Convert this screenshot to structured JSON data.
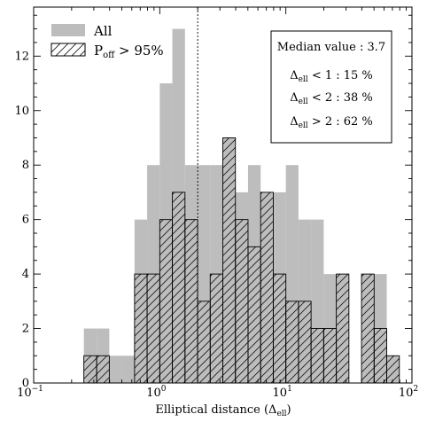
{
  "chart_data": {
    "type": "bar",
    "xscale": "log",
    "xlim": [
      0.1,
      100
    ],
    "ylim": [
      0,
      13.8
    ],
    "xlabel_main": "Elliptical distance (Δ",
    "xlabel_sub": "ell",
    "xlabel_end": ")",
    "xticks": [
      {
        "value": 0.1,
        "base": "10",
        "exp": "−1"
      },
      {
        "value": 1,
        "base": "10",
        "exp": "0"
      },
      {
        "value": 10,
        "base": "10",
        "exp": "1"
      },
      {
        "value": 100,
        "base": "10",
        "exp": "2"
      }
    ],
    "yticks": [
      0,
      2,
      4,
      6,
      8,
      10,
      12
    ],
    "median_line": 2.0,
    "bin_edges": [
      0.25,
      0.316,
      0.398,
      0.501,
      0.631,
      0.794,
      1.0,
      1.259,
      1.585,
      1.995,
      2.512,
      3.162,
      3.981,
      5.012,
      6.31,
      7.943,
      10.0,
      12.589,
      15.849,
      19.953,
      25.119,
      31.623,
      39.811,
      50.119,
      63.096,
      79.433
    ],
    "series": [
      {
        "name": "All",
        "color": "#bdbdbd",
        "values": [
          2,
          2,
          1,
          1,
          6,
          8,
          11,
          13,
          8,
          8,
          8,
          9,
          7,
          8,
          7,
          7,
          8,
          6,
          6,
          4,
          4,
          0,
          4,
          4,
          1
        ]
      },
      {
        "name": "P_off > 95%",
        "color": "#000000",
        "hatch": true,
        "values": [
          1,
          1,
          0,
          0,
          4,
          4,
          6,
          7,
          6,
          3,
          4,
          9,
          6,
          5,
          7,
          4,
          3,
          3,
          2,
          2,
          4,
          0,
          4,
          2,
          1
        ]
      }
    ],
    "legend": {
      "location": "top-left",
      "entries": [
        {
          "label": "All",
          "style": "fill"
        },
        {
          "label_main": "P",
          "label_sub": "off",
          "label_end": " > 95%",
          "style": "hatch"
        }
      ]
    },
    "annotation": {
      "location": "top-right",
      "lines": [
        {
          "main": "Median value : 3.7",
          "sub": "",
          "end": ""
        },
        {
          "main": "Δ",
          "sub": "ell",
          "end": " < 1 : 15 %"
        },
        {
          "main": "Δ",
          "sub": "ell",
          "end": " < 2 : 38 %"
        },
        {
          "main": "Δ",
          "sub": "ell",
          "end": " > 2 : 62 %"
        }
      ]
    }
  }
}
